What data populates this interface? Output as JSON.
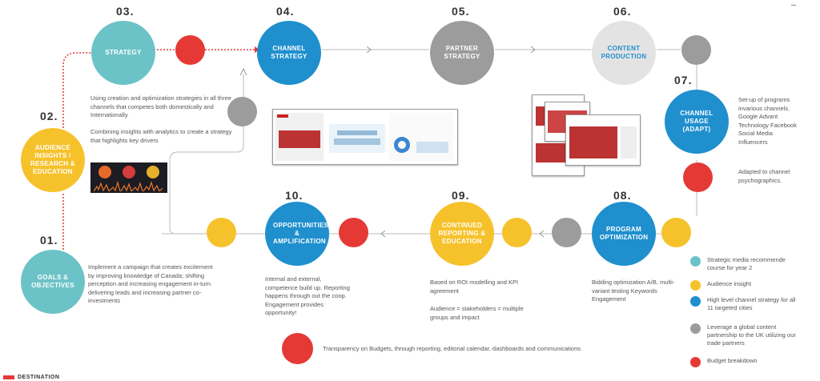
{
  "steps": {
    "s01": {
      "num": "01.",
      "label": "GOALS &\nOBJECTIVES",
      "text": "Implement a campaign that creates excitement by improving knowledge of Canada; shifting perception and increasing engagement in-turn delivering leads and increasing partner co-investments"
    },
    "s02": {
      "num": "02.",
      "label": "AUDIENCE INSIGHTS / RESEARCH & EDUCATION"
    },
    "s03": {
      "num": "03.",
      "label": "STRATEGY",
      "text1": "Using creation and optimization strategies in all three channels that competes both domestically and Internationally",
      "text2": "Combining insights with analytics to create a strategy that highlights key drivers"
    },
    "s04": {
      "num": "04.",
      "label": "CHANNEL STRATEGY"
    },
    "s05": {
      "num": "05.",
      "label": "PARTNER STRATEGY"
    },
    "s06": {
      "num": "06.",
      "label": "CONTENT PRODUCTION"
    },
    "s07": {
      "num": "07.",
      "label": "CHANNEL USAGE (ADAPT)",
      "text1": "Set-up of programs invarious channels. Google Advant Technology Facebook Social Media Influencers",
      "text2": "Adapted to channel psychographics."
    },
    "s08": {
      "num": "08.",
      "label": "PROGRAM OPTIMIZATION",
      "text": "Bidding optimization A/B, multi-variant testing Keywords Engagement"
    },
    "s09": {
      "num": "09.",
      "label": "CONTINUED REPORTING & EDUCATION",
      "text1": "Based on ROI modelling and KPI agreement",
      "text2": "Audience = stakeholders = multiple groups and impact"
    },
    "s10": {
      "num": "10.",
      "label": "OPPORTUNITIES & AMPLIFICATION",
      "text": "Internal and external, competence build up. Reporting happens through out the coop. Engagement provides opportunity!"
    }
  },
  "budget_note": "Transparency on Budgets, through reporting, editorial calendar, dashboards and communications",
  "legend": [
    {
      "color": "#6cc3c7",
      "text": "Strategic media recommende course for year 2"
    },
    {
      "color": "#f6c22b",
      "text": "Audience insight"
    },
    {
      "color": "#1f8fce",
      "text": "High level channel strategy for all 11 targeted cities"
    },
    {
      "color": "#9c9c9c",
      "text": "Leverage a global content partnership to the UK utilizing our trade partners"
    },
    {
      "color": "#e53935",
      "text": "Budget breakdown"
    }
  ],
  "footer_logo": "DESTINATION",
  "colors": {
    "teal": "#6cc3c7",
    "blue": "#1f8fce",
    "gray": "#9c9c9c",
    "yellow": "#f6c22b",
    "red": "#e53935"
  }
}
